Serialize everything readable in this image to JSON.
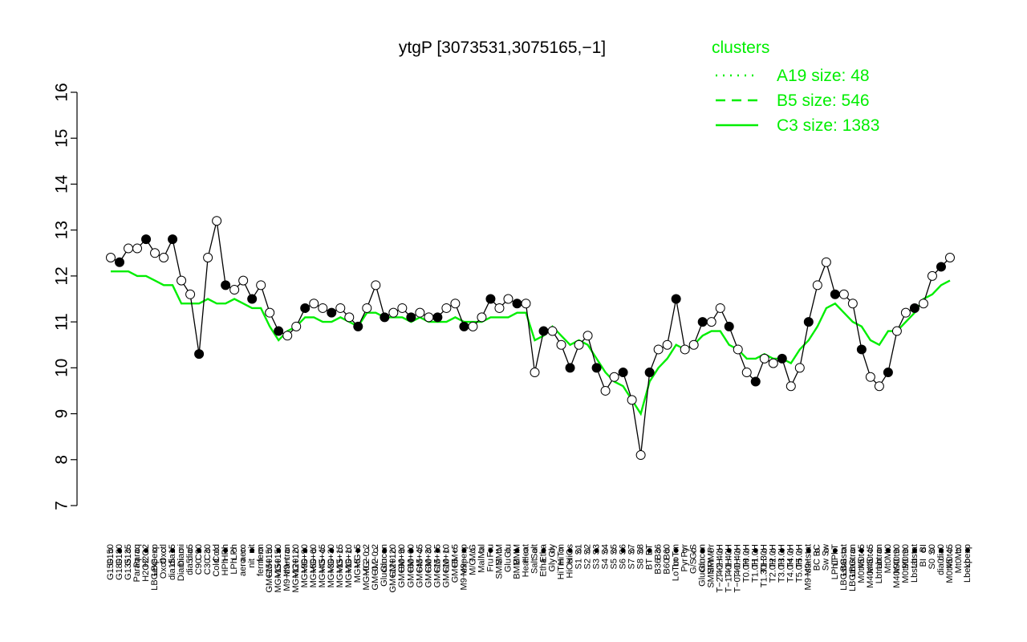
{
  "chart_data": {
    "type": "line",
    "title": "ytgP [3073531,3075165,−1]",
    "xlabel": "",
    "ylabel": "",
    "ylim": [
      7,
      16
    ],
    "yticks": [
      7,
      8,
      9,
      10,
      11,
      12,
      13,
      14,
      15,
      16
    ],
    "grid": false,
    "legend": {
      "title": "clusters",
      "placement": "top-right",
      "color": "#00ee00",
      "entries": [
        {
          "label": "A19 size: 48",
          "style": "dotted"
        },
        {
          "label": "B5 size: 546",
          "style": "dashed"
        },
        {
          "label": "C3 size: 1383",
          "style": "solid"
        }
      ]
    },
    "colors": {
      "profile": "#000000",
      "cluster": "#00ee00",
      "open_point": "#ffffff",
      "filled_point": "#000000"
    },
    "x_tick_labels": [
      "G150",
      "G180",
      "G135",
      "Paraq",
      "H2O2",
      "LBGexp",
      "Oxctl",
      "dia15",
      "Diami",
      "dia5",
      "C90",
      "C30",
      "Cold",
      "HPh",
      "LPh",
      "aero",
      "nit",
      "ferm",
      "GM+150",
      "MG+150",
      "M9−tran",
      "MG+120",
      "MG+90",
      "MG+60",
      "MG+45",
      "MG+30",
      "MG+15",
      "MG+10",
      "MG+5",
      "MG−0.2",
      "GM−0.2",
      "Glucon",
      "GM+120",
      "GM+90",
      "GM+60",
      "GM+45",
      "GM+30",
      "GM+15",
      "GM+10",
      "GM+5",
      "M9−exp",
      "M/G",
      "Mal",
      "Fru",
      "SMM",
      "Glu",
      "BMM",
      "Heat",
      "Salt",
      "Etha",
      "Gly",
      "HiTm",
      "HiOs",
      "S1",
      "S2",
      "S3",
      "S4",
      "S5",
      "S6",
      "S7",
      "S8",
      "BT",
      "B36",
      "B60",
      "LoTm",
      "Pyr",
      "G/S",
      "Glucon",
      "SMMPr",
      "T−2.40H",
      "T−1.40H",
      "T−0.40H",
      "T0.0H",
      "T1.0H",
      "T1.30H",
      "T2.0H",
      "T3.0H",
      "T4.0H",
      "T5.0H",
      "M9−stat",
      "BC",
      "Sw",
      "LPhT",
      "LBGstat",
      "LBGtran",
      "M0t45",
      "M40t45",
      "Lbtran",
      "Mt0",
      "M40t90",
      "M0t90",
      "Lbstat",
      "BI",
      "S0",
      "dia0",
      "M0t45",
      "Mt0",
      "Lbexp"
    ],
    "series": [
      {
        "name": "",
        "values": [
          12.4,
          12.3,
          12.6,
          12.6,
          12.8,
          12.5,
          12.4,
          12.8,
          11.9,
          11.6,
          10.3,
          12.4,
          13.2,
          11.8,
          11.7,
          11.9,
          11.5,
          11.8,
          11.2,
          10.8,
          10.7,
          10.9,
          11.3,
          11.4,
          11.3,
          11.2,
          11.3,
          11.1,
          10.9,
          11.3,
          11.8,
          11.1,
          11.2,
          11.3,
          11.1,
          11.2,
          11.1,
          11.1,
          11.3,
          11.4,
          10.9,
          10.9,
          11.1,
          11.5,
          11.3,
          11.5,
          11.4,
          11.4,
          9.9,
          10.8,
          10.8,
          10.5,
          10.0,
          10.5,
          10.7,
          10.0,
          9.5,
          9.8,
          9.9,
          9.3,
          8.1,
          9.9,
          10.4,
          10.5,
          11.5,
          10.4,
          10.5,
          11.0,
          11.0,
          11.3,
          10.9,
          10.4,
          9.9,
          9.7,
          10.2,
          10.1,
          10.2,
          9.6,
          10.0,
          11.0,
          11.8,
          12.3,
          11.6,
          11.6,
          11.4,
          10.4,
          9.8,
          9.6,
          9.9,
          10.8,
          11.2,
          11.3,
          11.4,
          12.0,
          12.2,
          12.4
        ]
      },
      {
        "name": "C3 size: 1383",
        "values": [
          12.1,
          12.1,
          12.1,
          12.0,
          12.0,
          11.9,
          11.8,
          11.8,
          11.4,
          11.4,
          11.4,
          11.5,
          11.4,
          11.4,
          11.5,
          11.4,
          11.3,
          11.3,
          10.9,
          10.6,
          10.8,
          10.9,
          11.1,
          11.1,
          11.0,
          11.0,
          11.1,
          11.0,
          10.9,
          11.2,
          11.2,
          11.1,
          11.1,
          11.1,
          11.0,
          11.1,
          11.0,
          11.0,
          11.0,
          11.1,
          11.0,
          11.0,
          11.0,
          11.1,
          11.1,
          11.1,
          11.2,
          11.2,
          10.6,
          10.7,
          10.9,
          10.7,
          10.5,
          10.6,
          10.5,
          10.2,
          9.9,
          9.7,
          9.6,
          9.3,
          9.0,
          9.7,
          10.0,
          10.2,
          10.5,
          10.4,
          10.5,
          10.7,
          10.8,
          10.8,
          10.5,
          10.4,
          10.2,
          10.2,
          10.3,
          10.2,
          10.2,
          10.1,
          10.4,
          10.6,
          10.9,
          11.3,
          11.4,
          11.2,
          11.0,
          10.9,
          10.6,
          10.5,
          10.8,
          10.8,
          11.0,
          11.2,
          11.5,
          11.6,
          11.8,
          11.9
        ]
      }
    ]
  }
}
